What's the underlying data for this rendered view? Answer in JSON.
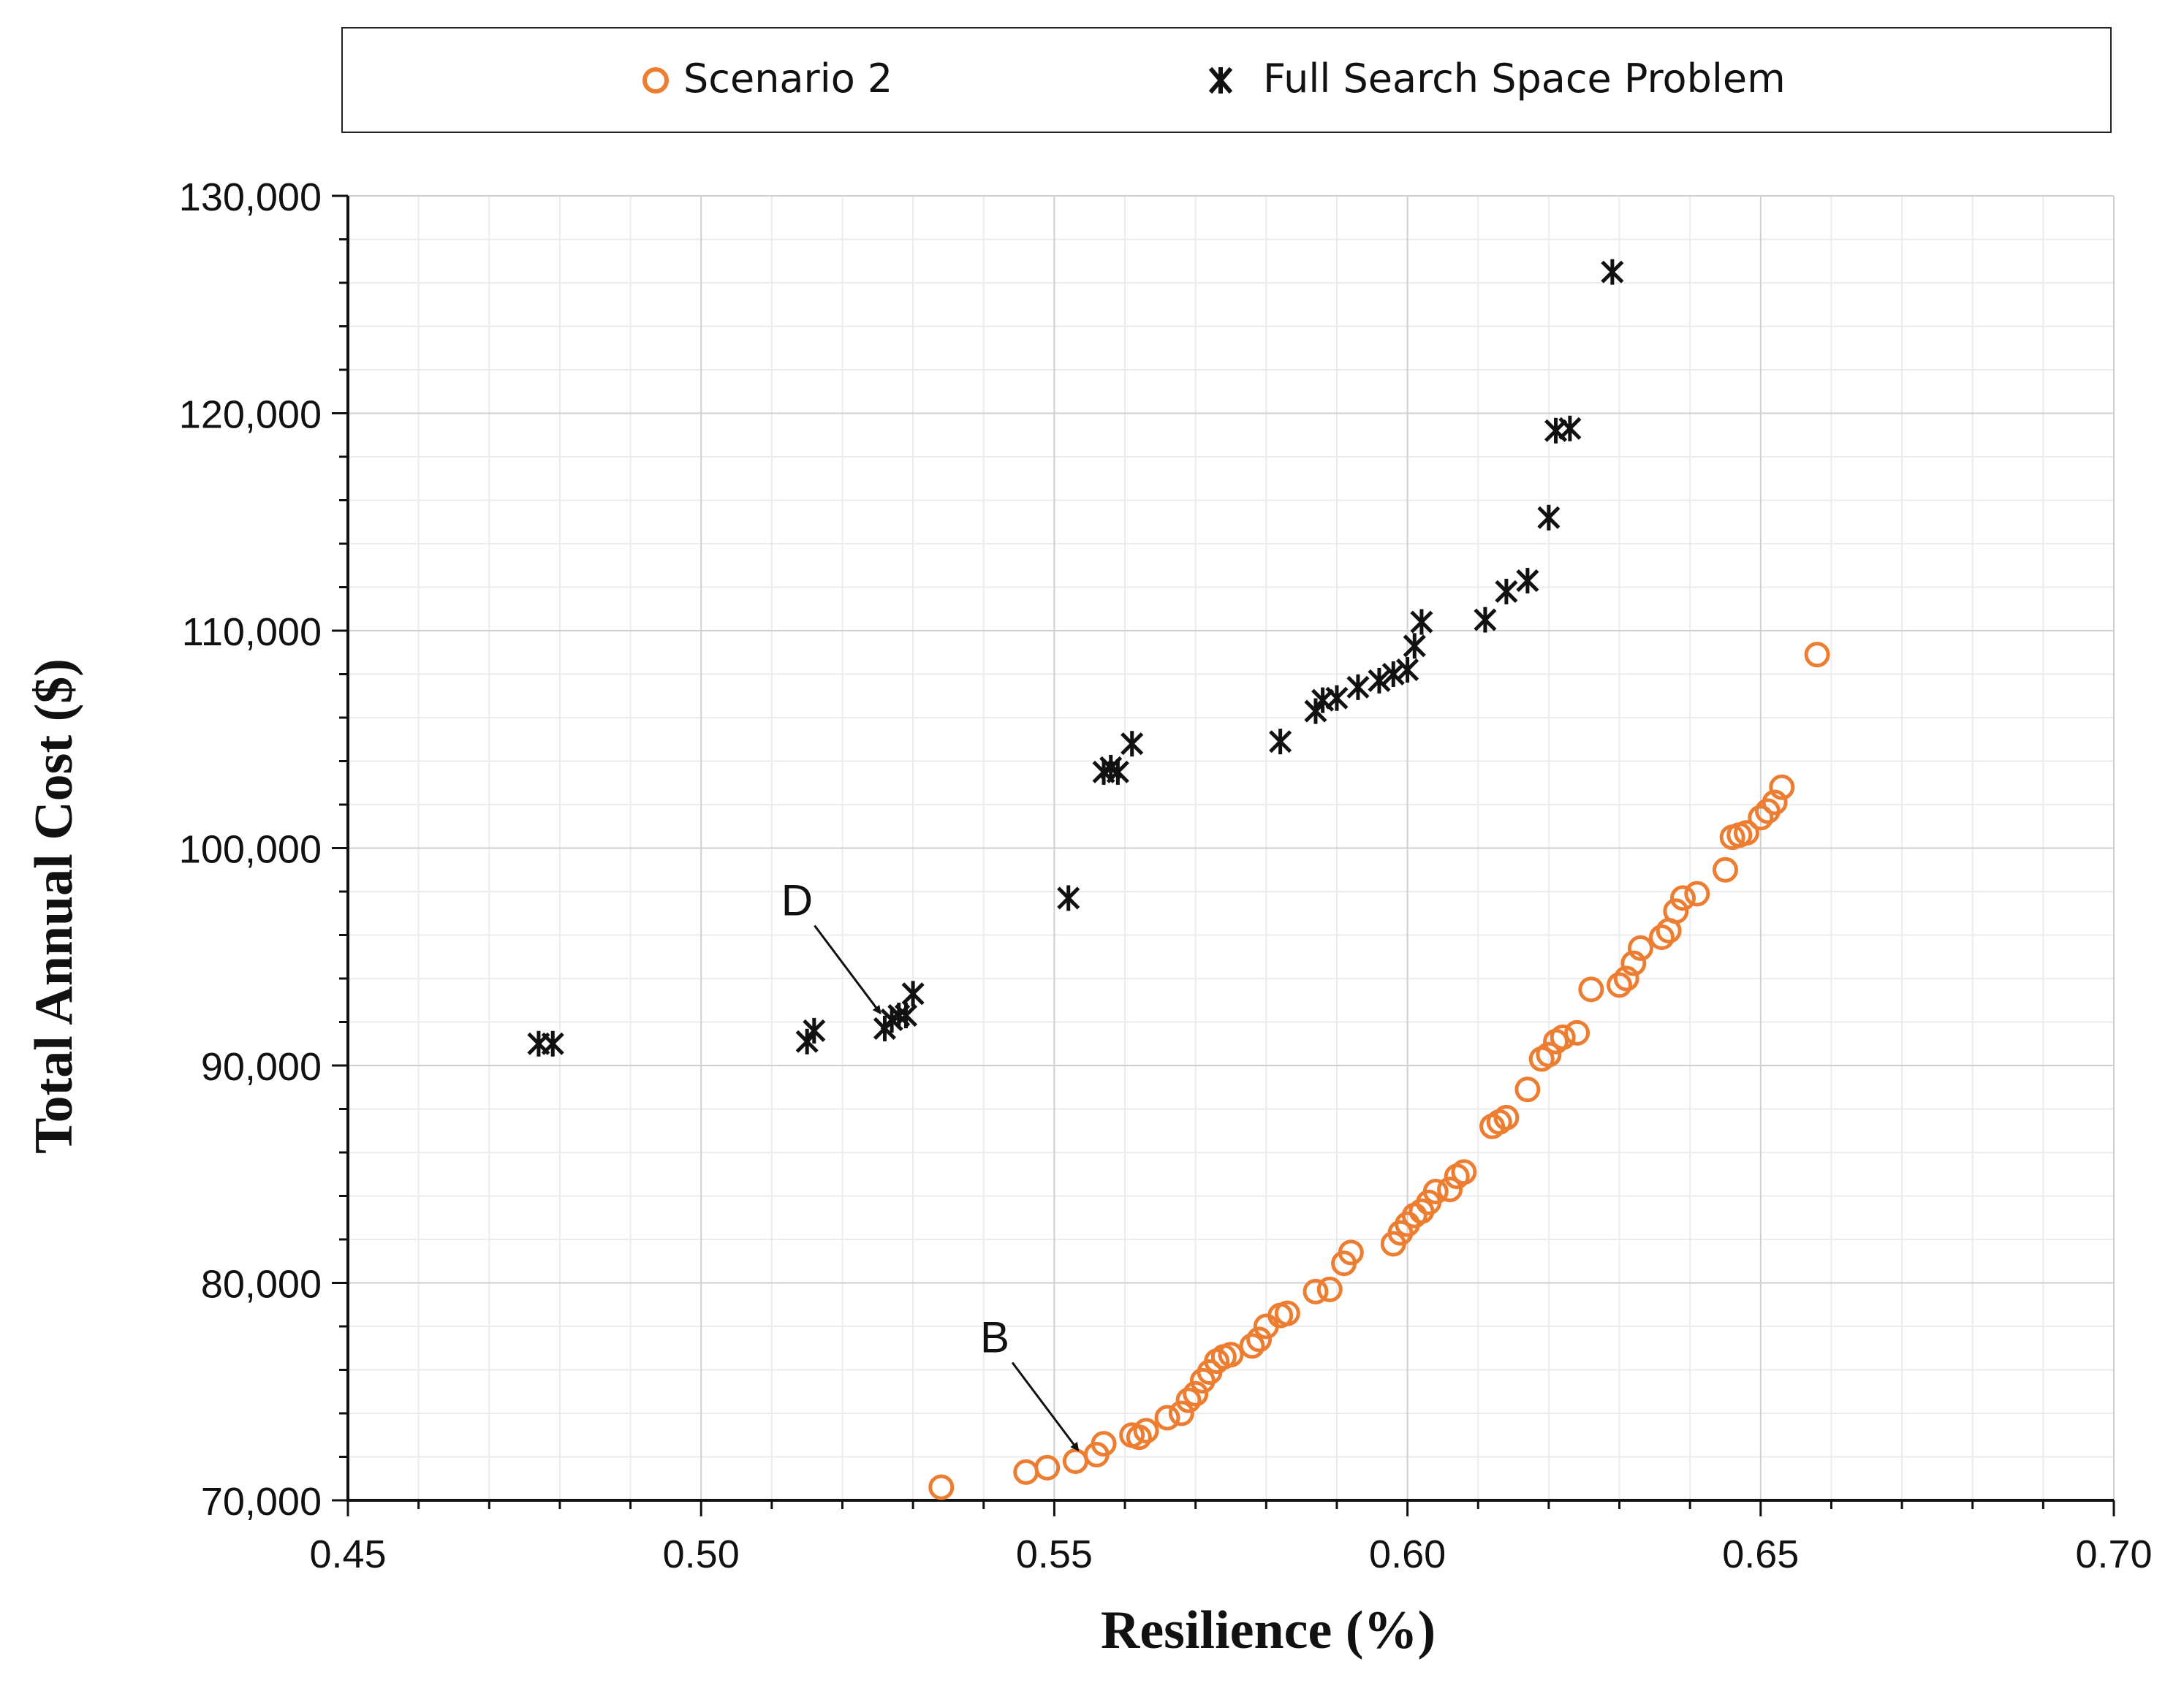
{
  "chart_data": {
    "type": "scatter",
    "title": "",
    "xlabel": "Resilience (%)",
    "ylabel": "Total Annual Cost ($)",
    "xlim": [
      0.45,
      0.7
    ],
    "ylim": [
      70000,
      130000
    ],
    "x_ticks": [
      0.45,
      0.5,
      0.55,
      0.6,
      0.65,
      0.7
    ],
    "x_tick_labels": [
      "0.45",
      "0.50",
      "0.55",
      "0.60",
      "0.65",
      "0.70"
    ],
    "y_ticks": [
      70000,
      80000,
      90000,
      100000,
      110000,
      120000,
      130000
    ],
    "y_tick_labels": [
      "70,000",
      "80,000",
      "90,000",
      "100,000",
      "110,000",
      "120,000",
      "130,000"
    ],
    "grid": true,
    "legend_position": "top",
    "series": [
      {
        "name": "Scenario 2",
        "marker": "circle-open",
        "color": "#ED7D31",
        "points": [
          [
            0.534,
            70600
          ],
          [
            0.546,
            71300
          ],
          [
            0.549,
            71500
          ],
          [
            0.553,
            71800
          ],
          [
            0.556,
            72100
          ],
          [
            0.557,
            72600
          ],
          [
            0.561,
            73000
          ],
          [
            0.562,
            72900
          ],
          [
            0.563,
            73200
          ],
          [
            0.566,
            73800
          ],
          [
            0.568,
            74000
          ],
          [
            0.569,
            74600
          ],
          [
            0.57,
            74900
          ],
          [
            0.571,
            75500
          ],
          [
            0.572,
            75900
          ],
          [
            0.573,
            76400
          ],
          [
            0.574,
            76600
          ],
          [
            0.575,
            76700
          ],
          [
            0.578,
            77100
          ],
          [
            0.579,
            77400
          ],
          [
            0.58,
            78000
          ],
          [
            0.582,
            78500
          ],
          [
            0.583,
            78600
          ],
          [
            0.587,
            79600
          ],
          [
            0.589,
            79700
          ],
          [
            0.591,
            80900
          ],
          [
            0.592,
            81400
          ],
          [
            0.598,
            81800
          ],
          [
            0.599,
            82300
          ],
          [
            0.6,
            82700
          ],
          [
            0.601,
            83100
          ],
          [
            0.602,
            83300
          ],
          [
            0.603,
            83700
          ],
          [
            0.604,
            84200
          ],
          [
            0.606,
            84300
          ],
          [
            0.607,
            84900
          ],
          [
            0.608,
            85100
          ],
          [
            0.612,
            87200
          ],
          [
            0.613,
            87400
          ],
          [
            0.614,
            87600
          ],
          [
            0.617,
            88900
          ],
          [
            0.619,
            90300
          ],
          [
            0.62,
            90500
          ],
          [
            0.621,
            91100
          ],
          [
            0.622,
            91300
          ],
          [
            0.624,
            91500
          ],
          [
            0.626,
            93500
          ],
          [
            0.63,
            93700
          ],
          [
            0.631,
            94000
          ],
          [
            0.632,
            94700
          ],
          [
            0.633,
            95400
          ],
          [
            0.636,
            95900
          ],
          [
            0.637,
            96200
          ],
          [
            0.638,
            97100
          ],
          [
            0.639,
            97700
          ],
          [
            0.641,
            97900
          ],
          [
            0.645,
            99000
          ],
          [
            0.646,
            100500
          ],
          [
            0.647,
            100600
          ],
          [
            0.648,
            100700
          ],
          [
            0.65,
            101400
          ],
          [
            0.651,
            101700
          ],
          [
            0.652,
            102100
          ],
          [
            0.653,
            102800
          ],
          [
            0.658,
            108900
          ]
        ]
      },
      {
        "name": "Full Search Space Problem",
        "marker": "asterisk",
        "color": "#111111",
        "points": [
          [
            0.477,
            91000
          ],
          [
            0.479,
            91000
          ],
          [
            0.515,
            91100
          ],
          [
            0.516,
            91600
          ],
          [
            0.526,
            91700
          ],
          [
            0.527,
            92100
          ],
          [
            0.528,
            92300
          ],
          [
            0.529,
            92300
          ],
          [
            0.53,
            93300
          ],
          [
            0.552,
            97700
          ],
          [
            0.557,
            103500
          ],
          [
            0.558,
            103700
          ],
          [
            0.559,
            103500
          ],
          [
            0.561,
            104800
          ],
          [
            0.582,
            104900
          ],
          [
            0.587,
            106300
          ],
          [
            0.588,
            106800
          ],
          [
            0.59,
            106900
          ],
          [
            0.593,
            107400
          ],
          [
            0.596,
            107700
          ],
          [
            0.598,
            108000
          ],
          [
            0.6,
            108200
          ],
          [
            0.601,
            109300
          ],
          [
            0.602,
            110400
          ],
          [
            0.611,
            110500
          ],
          [
            0.614,
            111800
          ],
          [
            0.617,
            112300
          ],
          [
            0.62,
            115200
          ],
          [
            0.621,
            119200
          ],
          [
            0.623,
            119300
          ],
          [
            0.629,
            126500
          ]
        ]
      }
    ],
    "annotations": [
      {
        "text": "D",
        "target": [
          0.526,
          92200
        ]
      },
      {
        "text": "B",
        "target": [
          0.554,
          72100
        ]
      }
    ]
  },
  "legend": {
    "items": [
      "Scenario 2",
      "Full Search Space Problem"
    ]
  }
}
